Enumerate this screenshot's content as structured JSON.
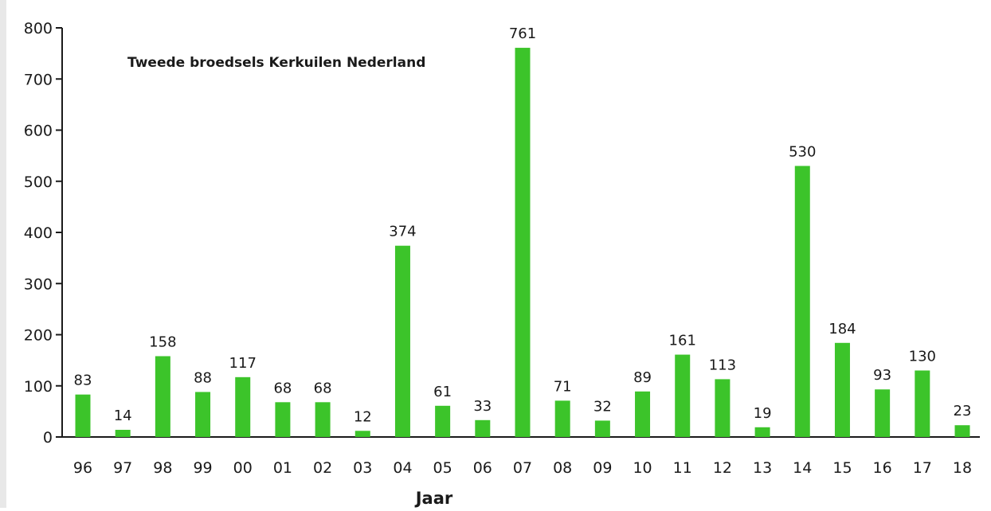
{
  "chart_data": {
    "type": "bar",
    "title": "Tweede broedsels Kerkuilen Nederland",
    "xlabel": "Jaar",
    "ylabel": "",
    "ylim": [
      0,
      800
    ],
    "yticks": [
      0,
      100,
      200,
      300,
      400,
      500,
      600,
      700,
      800
    ],
    "categories": [
      "96",
      "97",
      "98",
      "99",
      "00",
      "01",
      "02",
      "03",
      "04",
      "05",
      "06",
      "07",
      "08",
      "09",
      "10",
      "11",
      "12",
      "13",
      "14",
      "15",
      "16",
      "17",
      "18"
    ],
    "values": [
      83,
      14,
      158,
      88,
      117,
      68,
      68,
      12,
      374,
      61,
      33,
      761,
      71,
      32,
      89,
      161,
      113,
      19,
      530,
      184,
      93,
      130,
      23
    ],
    "bar_color": "#3cc42a",
    "grid": false,
    "legend": "none"
  }
}
